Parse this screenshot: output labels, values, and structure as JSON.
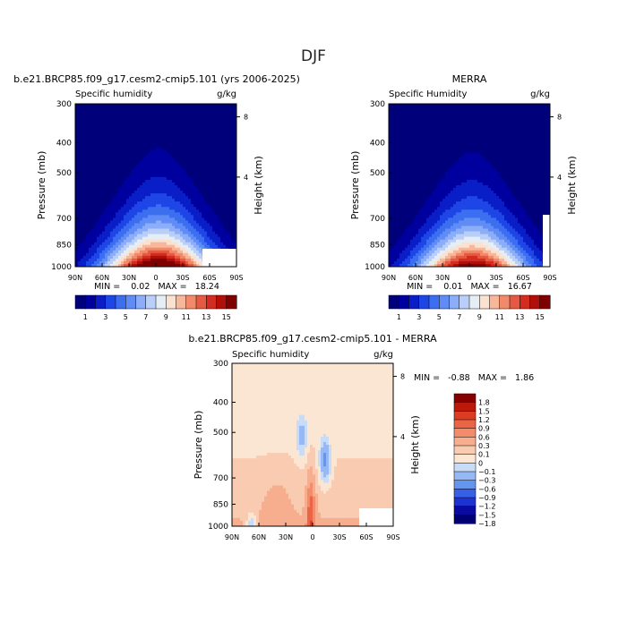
{
  "page": {
    "title": "DJF"
  },
  "levels": {
    "sh": [
      1,
      2,
      3,
      4,
      5,
      6,
      7,
      8,
      9,
      10,
      11,
      12,
      13,
      14,
      15
    ],
    "diff": [
      -1.8,
      -1.5,
      -1.2,
      -0.9,
      -0.6,
      -0.3,
      -0.1,
      0.1,
      0.3,
      0.6,
      0.9,
      1.2,
      1.5,
      1.8
    ]
  },
  "colors": {
    "sh": [
      "#00007a",
      "#00009e",
      "#0a1ec8",
      "#1e46e6",
      "#3c6ef0",
      "#5f8cf5",
      "#8cadf8",
      "#b9cef9",
      "#e6eef5",
      "#fbe1cf",
      "#f8b79a",
      "#f28a6a",
      "#e55a42",
      "#d42d20",
      "#b00f0a",
      "#800000"
    ],
    "diff": [
      "#000073",
      "#0a0aa0",
      "#1e32d2",
      "#3760e6",
      "#6496f0",
      "#96b9f5",
      "#c8dcf7",
      "#fbe6d4",
      "#f9cbb0",
      "#f7ae8f",
      "#f28c6b",
      "#ea6446",
      "#dc3c22",
      "#bb1909",
      "#870000"
    ]
  },
  "charts": [
    {
      "id": "model",
      "title": "b.e21.BRCP85.f09_g17.cesm2-cmip5.101 (yrs 2006-2025)",
      "left_label": "Specific humidity",
      "right_label": "g/kg",
      "min_text": "MIN =    0.02   MAX =   18.24",
      "ylabel": "Pressure (mb)",
      "ylabel2": "Height (km)",
      "yticks": [
        "300",
        "400",
        "500",
        "700",
        "850",
        "1000"
      ],
      "xticks": [
        "90N",
        "60N",
        "30N",
        "0",
        "30S",
        "60S",
        "90S"
      ],
      "height_ticks": [
        "8",
        "4"
      ],
      "colorbar_labels": [
        "1",
        "3",
        "5",
        "7",
        "9",
        "11",
        "13",
        "15"
      ]
    },
    {
      "id": "obs",
      "title": "MERRA",
      "left_label": "Specific Humidity",
      "right_label": "g/kg",
      "min_text": "MIN =    0.01   MAX =   16.67",
      "ylabel": "Pressure (mb)",
      "ylabel2": "Height (km)",
      "yticks": [
        "300",
        "400",
        "500",
        "700",
        "850",
        "1000"
      ],
      "xticks": [
        "90N",
        "60N",
        "30N",
        "0",
        "30S",
        "60S",
        "90S"
      ],
      "height_ticks": [
        "8",
        "4"
      ],
      "colorbar_labels": [
        "1",
        "3",
        "5",
        "7",
        "9",
        "11",
        "13",
        "15"
      ]
    },
    {
      "id": "diff",
      "title": "b.e21.BRCP85.f09_g17.cesm2-cmip5.101 - MERRA",
      "left_label": "Specific humidity",
      "right_label": "g/kg",
      "min_text": "MIN =   -0.88   MAX =   1.86",
      "ylabel": "Pressure (mb)",
      "ylabel2": "Height (km)",
      "yticks": [
        "300",
        "400",
        "500",
        "700",
        "850",
        "1000"
      ],
      "xticks": [
        "90N",
        "60N",
        "30N",
        "0",
        "30S",
        "60S",
        "90S"
      ],
      "height_ticks": [
        "8",
        "4"
      ],
      "colorbar_labels": [
        "1.8",
        "1.5",
        "1.2",
        "0.9",
        "0.6",
        "0.3",
        "0.1",
        "0",
        "−0.1",
        "−0.3",
        "−0.6",
        "−0.9",
        "−1.2",
        "−1.5",
        "−1.8"
      ]
    }
  ],
  "chart_data": [
    {
      "type": "heatmap",
      "title": "b.e21.BRCP85.f09_g17.cesm2-cmip5.101 (yrs 2006-2025)",
      "xlabel": "",
      "ylabel": "Pressure (mb)",
      "x_range": [
        "90N",
        "90S"
      ],
      "y_range": [
        1000,
        300
      ],
      "min": 0.02,
      "max": 18.24,
      "y_axis_right": "Height (km)"
    },
    {
      "type": "heatmap",
      "title": "MERRA",
      "xlabel": "",
      "ylabel": "Pressure (mb)",
      "x_range": [
        "90N",
        "90S"
      ],
      "y_range": [
        1000,
        300
      ],
      "min": 0.01,
      "max": 16.67,
      "y_axis_right": "Height (km)"
    },
    {
      "type": "heatmap",
      "title": "b.e21.BRCP85.f09_g17.cesm2-cmip5.101 - MERRA",
      "xlabel": "",
      "ylabel": "Pressure (mb)",
      "x_range": [
        "90N",
        "90S"
      ],
      "y_range": [
        1000,
        300
      ],
      "min": -0.88,
      "max": 1.86,
      "y_axis_right": "Height (km)"
    }
  ]
}
